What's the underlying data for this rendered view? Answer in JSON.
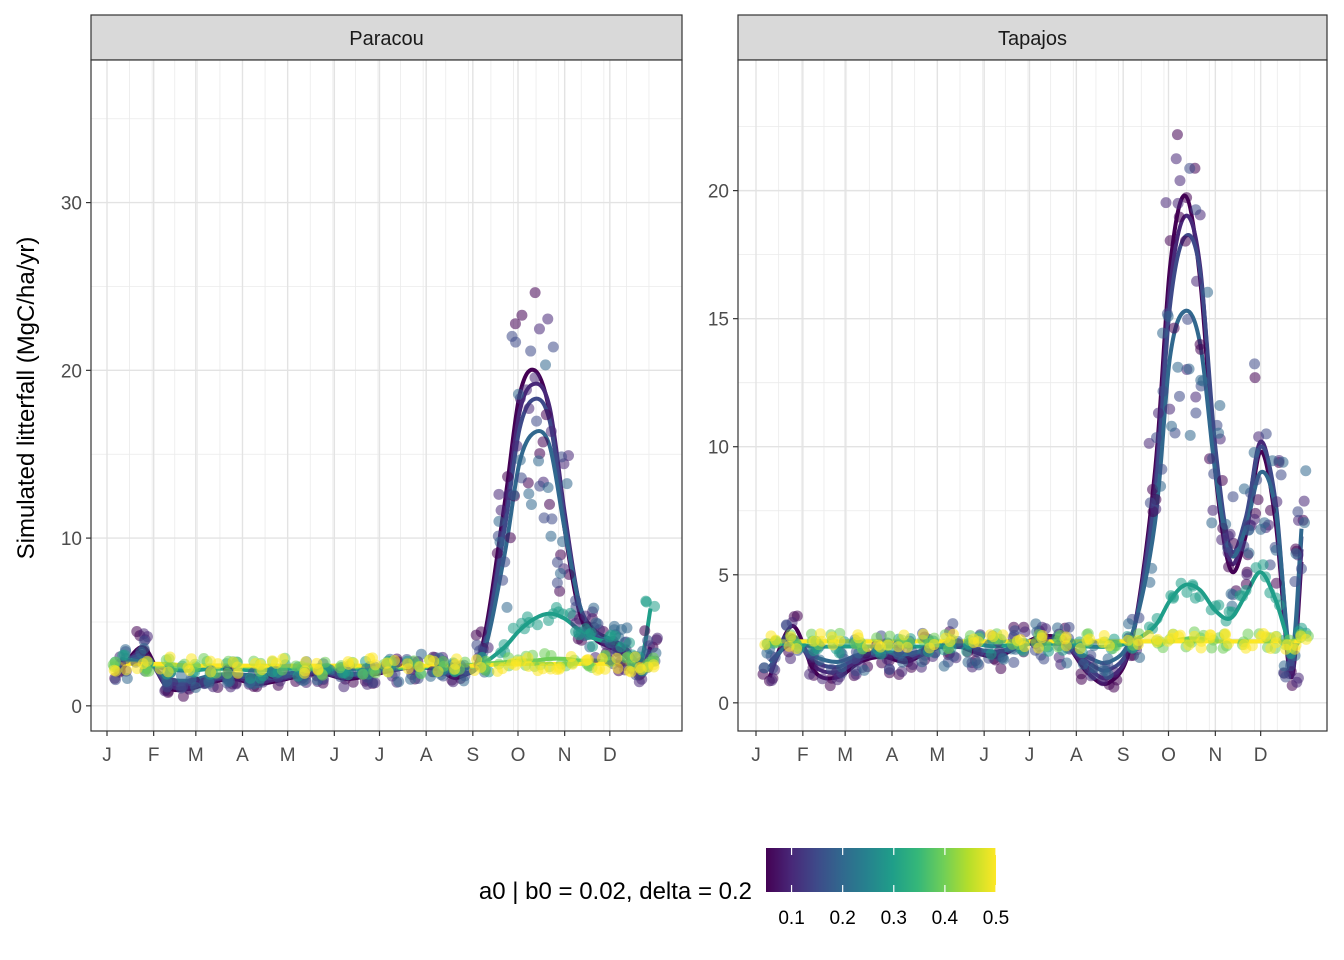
{
  "chart_data": {
    "type": "scatter",
    "ylabel": "Simulated litterfall (MgC/ha/yr)",
    "xlabel": "",
    "month_labels": [
      "J",
      "F",
      "M",
      "A",
      "M",
      "J",
      "J",
      "A",
      "S",
      "O",
      "N",
      "D"
    ],
    "x_unit": "day of year",
    "grid": true,
    "smooth_lines": true,
    "legend": {
      "title": "a0 | b0 = 0.02, delta = 0.2",
      "placement": "bottom",
      "type": "colorbar",
      "range": [
        0.05,
        0.5
      ],
      "tick_labels": [
        "0.1",
        "0.2",
        "0.3",
        "0.4",
        "0.5"
      ],
      "tick_values": [
        0.1,
        0.2,
        0.3,
        0.4,
        0.5
      ],
      "colors": [
        "#440154",
        "#482878",
        "#3e4a89",
        "#31688e",
        "#26828e",
        "#1f9e89",
        "#35b779",
        "#6ece58",
        "#b5de2b",
        "#fde725"
      ]
    },
    "panels": [
      {
        "title": "Paracou",
        "ylim": [
          -1.5,
          38.5
        ],
        "yticks": [
          0,
          10,
          20,
          30
        ],
        "series": [
          {
            "a0": 0.05,
            "x": [
              10,
              25,
              40,
              55,
              70,
              85,
              100,
              115,
              130,
              145,
              160,
              175,
              190,
              205,
              220,
              235,
              250,
              265,
              275,
              285,
              295,
              305,
              315,
              325,
              335,
              345,
              355,
              362
            ],
            "y": [
              2.0,
              3.5,
              1.2,
              1.0,
              1.4,
              1.6,
              1.3,
              1.5,
              1.8,
              1.9,
              1.6,
              1.8,
              2.1,
              2.4,
              2.2,
              1.7,
              3.5,
              12.0,
              18.5,
              20.0,
              17.5,
              10.5,
              5.5,
              4.0,
              3.5,
              3.0,
              2.0,
              3.5
            ]
          },
          {
            "a0": 0.1,
            "x": [
              10,
              25,
              40,
              55,
              70,
              85,
              100,
              115,
              130,
              145,
              160,
              175,
              190,
              205,
              220,
              235,
              250,
              265,
              275,
              285,
              295,
              305,
              315,
              325,
              335,
              345,
              355,
              362
            ],
            "y": [
              2.2,
              3.2,
              1.3,
              1.1,
              1.5,
              1.7,
              1.4,
              1.6,
              1.8,
              1.9,
              1.7,
              1.9,
              2.1,
              2.3,
              2.2,
              1.8,
              3.2,
              11.0,
              17.5,
              19.2,
              17.8,
              11.5,
              6.0,
              4.2,
              3.6,
              3.0,
              2.2,
              3.2
            ]
          },
          {
            "a0": 0.15,
            "x": [
              10,
              25,
              40,
              55,
              70,
              85,
              100,
              115,
              130,
              145,
              160,
              175,
              190,
              205,
              220,
              235,
              250,
              265,
              275,
              285,
              295,
              305,
              315,
              325,
              335,
              345,
              355,
              362
            ],
            "y": [
              2.4,
              3.0,
              1.5,
              1.3,
              1.6,
              1.8,
              1.6,
              1.7,
              1.9,
              2.0,
              1.8,
              2.0,
              2.2,
              2.3,
              2.2,
              1.9,
              3.0,
              10.5,
              16.5,
              18.3,
              17.0,
              11.0,
              6.0,
              4.3,
              3.8,
              3.2,
              2.4,
              3.0
            ]
          },
          {
            "a0": 0.2,
            "x": [
              10,
              25,
              40,
              55,
              70,
              85,
              100,
              115,
              130,
              145,
              160,
              175,
              190,
              205,
              220,
              235,
              250,
              265,
              275,
              285,
              295,
              305,
              315,
              325,
              335,
              345,
              355,
              362
            ],
            "y": [
              2.5,
              2.8,
              1.7,
              1.5,
              1.8,
              1.9,
              1.8,
              1.9,
              2.0,
              2.1,
              1.9,
              2.0,
              2.2,
              2.3,
              2.2,
              2.0,
              2.8,
              9.0,
              14.5,
              16.3,
              15.5,
              10.5,
              6.0,
              4.5,
              4.0,
              3.5,
              2.5,
              3.0
            ]
          },
          {
            "a0": 0.3,
            "x": [
              10,
              25,
              40,
              55,
              70,
              85,
              100,
              115,
              130,
              145,
              160,
              175,
              190,
              205,
              220,
              235,
              250,
              265,
              275,
              285,
              295,
              305,
              315,
              325,
              335,
              345,
              355,
              362
            ],
            "y": [
              2.8,
              2.6,
              2.2,
              2.1,
              2.2,
              2.2,
              2.1,
              2.2,
              2.2,
              2.2,
              2.2,
              2.2,
              2.2,
              2.3,
              2.3,
              2.2,
              2.5,
              3.5,
              4.5,
              5.2,
              5.5,
              5.2,
              4.5,
              4.0,
              3.8,
              3.5,
              2.5,
              5.8
            ]
          },
          {
            "a0": 0.4,
            "x": [
              10,
              25,
              40,
              55,
              70,
              85,
              100,
              115,
              130,
              145,
              160,
              175,
              190,
              205,
              220,
              235,
              250,
              265,
              275,
              285,
              295,
              305,
              315,
              325,
              335,
              345,
              355,
              362
            ],
            "y": [
              2.6,
              2.5,
              2.4,
              2.4,
              2.4,
              2.4,
              2.3,
              2.4,
              2.3,
              2.3,
              2.3,
              2.3,
              2.3,
              2.3,
              2.4,
              2.4,
              2.5,
              2.6,
              2.7,
              2.7,
              2.8,
              2.8,
              2.7,
              2.7,
              2.6,
              2.6,
              2.5,
              2.6
            ]
          },
          {
            "a0": 0.5,
            "x": [
              10,
              25,
              40,
              55,
              70,
              85,
              100,
              115,
              130,
              145,
              160,
              175,
              190,
              205,
              220,
              235,
              250,
              265,
              275,
              285,
              295,
              305,
              315,
              325,
              335,
              345,
              355,
              362
            ],
            "y": [
              2.5,
              2.5,
              2.5,
              2.4,
              2.4,
              2.4,
              2.4,
              2.4,
              2.4,
              2.4,
              2.4,
              2.4,
              2.4,
              2.4,
              2.4,
              2.4,
              2.4,
              2.5,
              2.5,
              2.5,
              2.5,
              2.5,
              2.5,
              2.5,
              2.5,
              2.5,
              2.5,
              2.5
            ]
          }
        ]
      },
      {
        "title": "Tapajos",
        "ylim": [
          -1.1,
          25.1
        ],
        "yticks": [
          0,
          5,
          10,
          15,
          20
        ],
        "series": [
          {
            "a0": 0.05,
            "x": [
              10,
              25,
              40,
              55,
              70,
              85,
              100,
              115,
              130,
              145,
              160,
              175,
              190,
              205,
              220,
              235,
              250,
              265,
              275,
              285,
              295,
              305,
              315,
              325,
              335,
              345,
              355,
              362
            ],
            "y": [
              1.0,
              3.0,
              1.2,
              1.0,
              1.6,
              1.8,
              1.6,
              2.0,
              2.4,
              2.0,
              1.8,
              2.2,
              2.6,
              2.4,
              1.2,
              0.8,
              2.5,
              9.0,
              17.0,
              19.8,
              16.5,
              9.0,
              5.2,
              6.5,
              9.8,
              7.0,
              1.0,
              5.5
            ]
          },
          {
            "a0": 0.1,
            "x": [
              10,
              25,
              40,
              55,
              70,
              85,
              100,
              115,
              130,
              145,
              160,
              175,
              190,
              205,
              220,
              235,
              250,
              265,
              275,
              285,
              295,
              305,
              315,
              325,
              335,
              345,
              355,
              362
            ],
            "y": [
              1.2,
              2.6,
              1.4,
              1.2,
              1.7,
              1.9,
              1.7,
              2.0,
              2.3,
              2.0,
              1.9,
              2.2,
              2.5,
              2.3,
              1.4,
              1.0,
              2.5,
              8.5,
              16.2,
              19.0,
              17.0,
              9.5,
              5.5,
              7.0,
              10.2,
              7.5,
              1.2,
              6.0
            ]
          },
          {
            "a0": 0.15,
            "x": [
              10,
              25,
              40,
              55,
              70,
              85,
              100,
              115,
              130,
              145,
              160,
              175,
              190,
              205,
              220,
              235,
              250,
              265,
              275,
              285,
              295,
              305,
              315,
              325,
              335,
              345,
              355,
              362
            ],
            "y": [
              1.4,
              2.4,
              1.6,
              1.4,
              1.8,
              2.0,
              1.8,
              2.1,
              2.3,
              2.1,
              2.0,
              2.2,
              2.4,
              2.3,
              1.6,
              1.3,
              2.6,
              8.0,
              15.5,
              18.2,
              16.8,
              10.0,
              6.0,
              7.2,
              10.0,
              7.8,
              1.5,
              6.5
            ]
          },
          {
            "a0": 0.2,
            "x": [
              10,
              25,
              40,
              55,
              70,
              85,
              100,
              115,
              130,
              145,
              160,
              175,
              190,
              205,
              220,
              235,
              250,
              265,
              275,
              285,
              295,
              305,
              315,
              325,
              335,
              345,
              355,
              362
            ],
            "y": [
              1.6,
              2.3,
              1.8,
              1.6,
              1.9,
              2.0,
              1.9,
              2.1,
              2.2,
              2.1,
              2.0,
              2.2,
              2.4,
              2.3,
              1.8,
              1.6,
              2.7,
              7.0,
              13.5,
              15.3,
              14.0,
              9.0,
              5.8,
              6.8,
              9.0,
              7.5,
              1.8,
              6.8
            ]
          },
          {
            "a0": 0.3,
            "x": [
              10,
              25,
              40,
              55,
              70,
              85,
              100,
              115,
              130,
              145,
              160,
              175,
              190,
              205,
              220,
              235,
              250,
              265,
              275,
              285,
              295,
              305,
              315,
              325,
              335,
              345,
              355,
              362
            ],
            "y": [
              2.3,
              2.3,
              2.2,
              2.2,
              2.2,
              2.2,
              2.2,
              2.2,
              2.3,
              2.3,
              2.2,
              2.3,
              2.3,
              2.3,
              2.2,
              2.2,
              2.4,
              3.0,
              4.0,
              4.6,
              4.4,
              3.6,
              3.3,
              4.2,
              5.1,
              4.0,
              2.2,
              2.6
            ]
          },
          {
            "a0": 0.4,
            "x": [
              10,
              25,
              40,
              55,
              70,
              85,
              100,
              115,
              130,
              145,
              160,
              175,
              190,
              205,
              220,
              235,
              250,
              265,
              275,
              285,
              295,
              305,
              315,
              325,
              335,
              345,
              355,
              362
            ],
            "y": [
              2.4,
              2.4,
              2.4,
              2.4,
              2.4,
              2.4,
              2.4,
              2.4,
              2.4,
              2.4,
              2.4,
              2.4,
              2.4,
              2.4,
              2.4,
              2.4,
              2.4,
              2.4,
              2.4,
              2.5,
              2.5,
              2.4,
              2.4,
              2.4,
              2.4,
              2.4,
              2.4,
              2.5
            ]
          },
          {
            "a0": 0.5,
            "x": [
              10,
              25,
              40,
              55,
              70,
              85,
              100,
              115,
              130,
              145,
              160,
              175,
              190,
              205,
              220,
              235,
              250,
              265,
              275,
              285,
              295,
              305,
              315,
              325,
              335,
              345,
              355,
              362
            ],
            "y": [
              2.4,
              2.4,
              2.4,
              2.4,
              2.4,
              2.4,
              2.4,
              2.4,
              2.4,
              2.4,
              2.4,
              2.4,
              2.4,
              2.4,
              2.4,
              2.4,
              2.4,
              2.4,
              2.4,
              2.4,
              2.4,
              2.4,
              2.4,
              2.4,
              2.4,
              2.4,
              2.4,
              2.4
            ]
          }
        ]
      }
    ]
  }
}
